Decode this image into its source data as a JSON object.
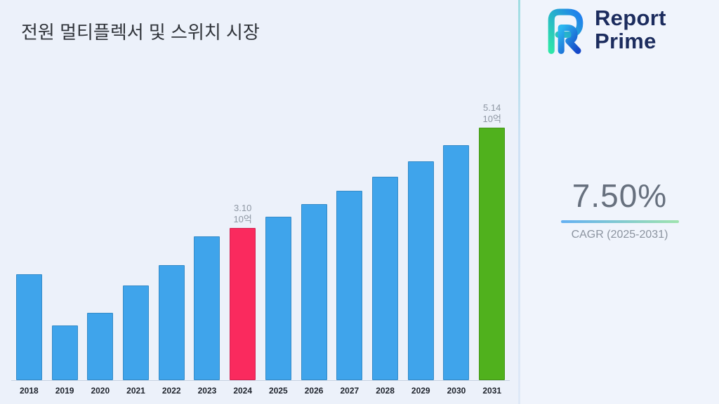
{
  "title": "전원 멀티플렉서 및 스위치 시장",
  "logo": {
    "line1": "Report",
    "line2": "Prime"
  },
  "side": {
    "cagr_value": "7.50%",
    "cagr_label": "CAGR (2025-2031)",
    "accent_gradient": [
      "#64b0f2",
      "#9fe3ae"
    ]
  },
  "chart_data": {
    "type": "bar",
    "title": "전원 멀티플렉서 및 스위치 시장",
    "categories": [
      "2018",
      "2019",
      "2020",
      "2021",
      "2022",
      "2023",
      "2024",
      "2025",
      "2026",
      "2027",
      "2028",
      "2029",
      "2030",
      "2031"
    ],
    "values": [
      2.15,
      1.12,
      1.37,
      1.93,
      2.34,
      2.92,
      3.1,
      3.33,
      3.58,
      3.85,
      4.14,
      4.45,
      4.78,
      5.14
    ],
    "unit": "10억",
    "labeled_points": [
      {
        "category": "2024",
        "value_label": "3.10",
        "unit_label": "10억"
      },
      {
        "category": "2031",
        "value_label": "5.14",
        "unit_label": "10억"
      }
    ],
    "colors": {
      "default": "#3fa4eb",
      "2024": "#fa2a5e",
      "2031": "#50b11d"
    },
    "xlabel": "",
    "ylabel": "",
    "ylim": [
      0,
      5.5
    ],
    "grid": false,
    "legend": false
  }
}
